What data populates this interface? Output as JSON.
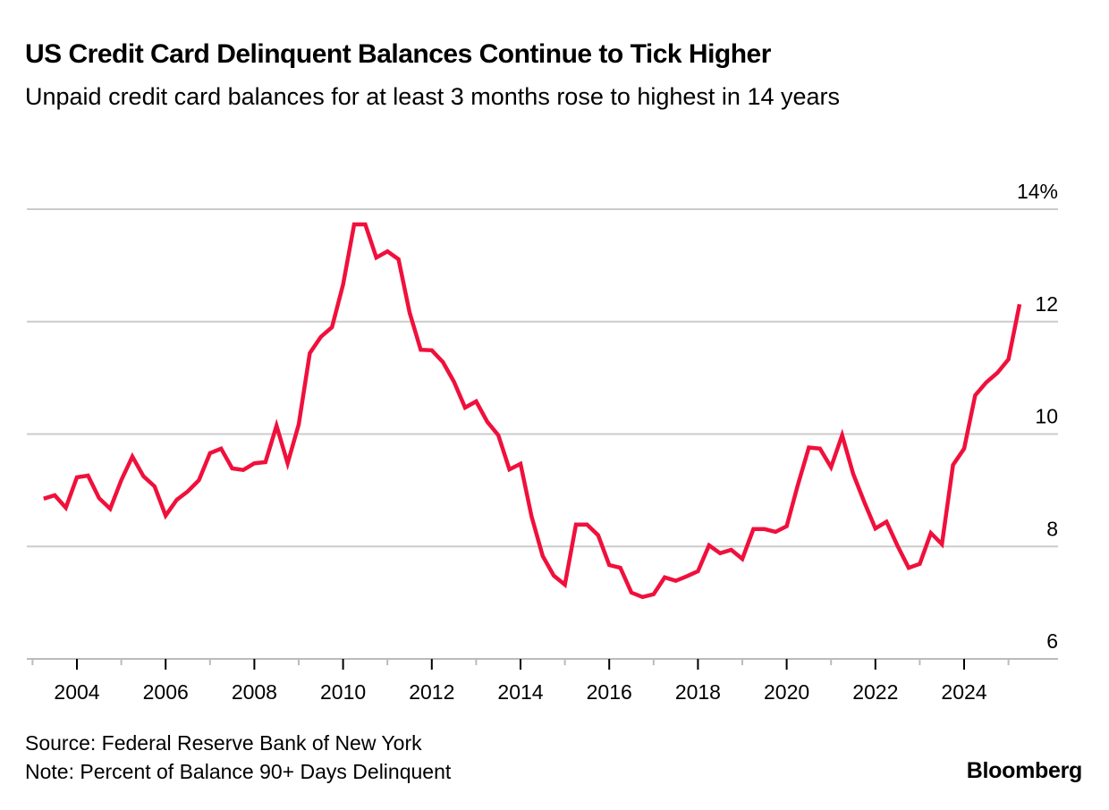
{
  "header": {
    "title": "US Credit Card Delinquent Balances Continue to Tick Higher",
    "subtitle": "Unpaid credit card balances for at least 3 months rose to highest in 14 years"
  },
  "footer": {
    "source": "Source: Federal Reserve Bank of New York",
    "note": "Note: Percent of Balance 90+ Days Delinquent",
    "brand": "Bloomberg"
  },
  "colors": {
    "line": "#f0103c",
    "grid": "#cccccc",
    "axis": "#bbbbbb"
  },
  "chart_data": {
    "type": "line",
    "title": "US Credit Card Delinquent Balances Continue to Tick Higher",
    "xlabel": "",
    "ylabel": "Percent of Balance 90+ Days Delinquent",
    "ylim": [
      6,
      14
    ],
    "xlim": [
      2003,
      2025.75
    ],
    "grid": true,
    "y_ticks": [
      6,
      8,
      10,
      12,
      14
    ],
    "y_tick_labels": [
      "6",
      "8",
      "10",
      "12",
      "14%"
    ],
    "x_ticks": [
      2004,
      2006,
      2008,
      2010,
      2012,
      2014,
      2016,
      2018,
      2020,
      2022,
      2024
    ],
    "x_tick_labels": [
      "2004",
      "2006",
      "2008",
      "2010",
      "2012",
      "2014",
      "2016",
      "2018",
      "2020",
      "2022",
      "2024"
    ],
    "x_start": 2003.25,
    "x_step": 0.25,
    "series": [
      {
        "name": "Percent of Balance 90+ Days Delinquent",
        "values": [
          8.85,
          8.91,
          8.69,
          9.23,
          9.26,
          8.86,
          8.67,
          9.18,
          9.6,
          9.25,
          9.07,
          8.55,
          8.83,
          8.98,
          9.18,
          9.66,
          9.74,
          9.39,
          9.36,
          9.48,
          9.5,
          10.15,
          9.48,
          10.17,
          11.44,
          11.73,
          11.9,
          12.66,
          13.73,
          13.73,
          13.14,
          13.25,
          13.11,
          12.16,
          11.5,
          11.49,
          11.28,
          10.93,
          10.47,
          10.58,
          10.22,
          9.98,
          9.37,
          9.47,
          8.53,
          7.83,
          7.48,
          7.32,
          8.39,
          8.39,
          8.2,
          7.67,
          7.62,
          7.18,
          7.1,
          7.15,
          7.45,
          7.39,
          7.47,
          7.56,
          8.02,
          7.88,
          7.94,
          7.78,
          8.31,
          8.31,
          8.26,
          8.36,
          9.09,
          9.76,
          9.74,
          9.41,
          9.98,
          9.29,
          8.79,
          8.32,
          8.44,
          8.01,
          7.62,
          7.69,
          8.24,
          8.04,
          9.45,
          9.74,
          10.69,
          10.92,
          11.09,
          11.33,
          12.31
        ]
      }
    ]
  }
}
